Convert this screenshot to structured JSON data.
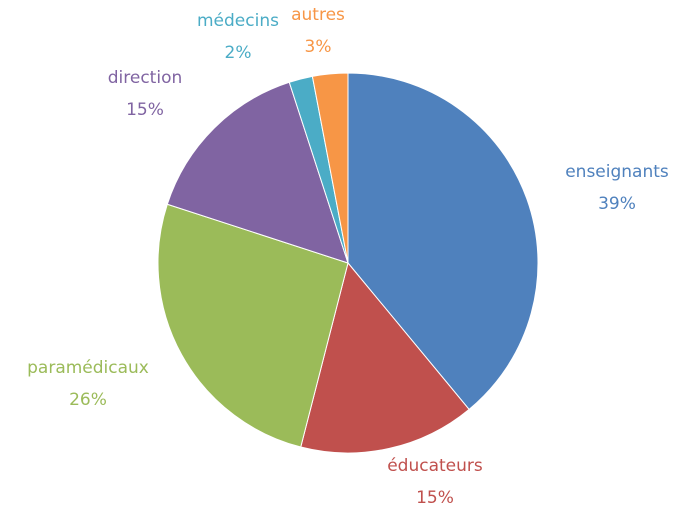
{
  "chart_data": {
    "type": "pie",
    "categories": [
      "enseignants",
      "éducateurs",
      "paramédicaux",
      "direction",
      "médecins",
      "autres"
    ],
    "values": [
      39,
      15,
      26,
      15,
      2,
      3
    ],
    "value_labels": [
      "39%",
      "15%",
      "26%",
      "15%",
      "2%",
      "3%"
    ],
    "colors": [
      "#4f81bd",
      "#c0504d",
      "#9bbb59",
      "#8064a2",
      "#4bacc6",
      "#f79646"
    ]
  }
}
